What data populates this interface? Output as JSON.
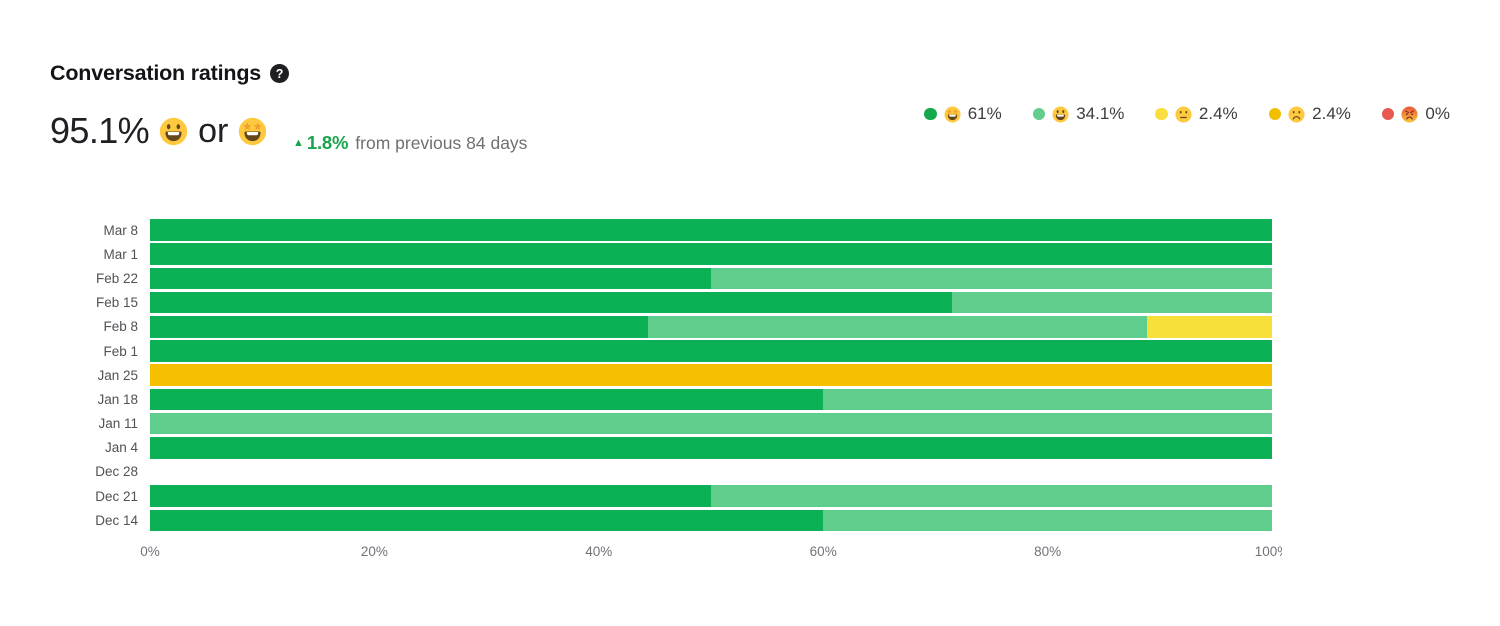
{
  "header": {
    "title": "Conversation ratings",
    "help_glyph": "?",
    "score": "95.1%",
    "score_emoji_1": "grinning",
    "score_conjunction": "or",
    "score_emoji_2": "star-struck",
    "delta_arrow": "▲",
    "delta": "1.8%",
    "delta_caption": "from previous 84 days",
    "delta_color": "#18a44c"
  },
  "legend": [
    {
      "emoji": "star-struck",
      "value": "61%",
      "dot_color": "#16a84c"
    },
    {
      "emoji": "grinning",
      "value": "34.1%",
      "dot_color": "#63cd8e"
    },
    {
      "emoji": "neutral",
      "value": "2.4%",
      "dot_color": "#fadd3f"
    },
    {
      "emoji": "slight-frown",
      "value": "2.4%",
      "dot_color": "#f2bf00"
    },
    {
      "emoji": "angry",
      "value": "0%",
      "dot_color": "#e85a50"
    }
  ],
  "chart_data": {
    "type": "bar",
    "orientation": "horizontal",
    "stacked": true,
    "unit": "%",
    "xlim": [
      0,
      100
    ],
    "grid": false,
    "x_ticks": [
      "0%",
      "20%",
      "40%",
      "60%",
      "80%",
      "100%"
    ],
    "categories": [
      "Mar 8",
      "Mar 1",
      "Feb 22",
      "Feb 15",
      "Feb 8",
      "Feb 1",
      "Jan 25",
      "Jan 18",
      "Jan 11",
      "Jan 4",
      "Dec 28",
      "Dec 21",
      "Dec 14"
    ],
    "series": [
      {
        "name": "rating-amazing",
        "emoji": "star-struck",
        "color": "#0cb155",
        "values": [
          100,
          100,
          50,
          71.5,
          44.4,
          100,
          0,
          60,
          0,
          100,
          0,
          50,
          60
        ]
      },
      {
        "name": "rating-great",
        "emoji": "grinning",
        "color": "#5fce8d",
        "values": [
          0,
          0,
          50,
          28.5,
          44.5,
          0,
          0,
          40,
          100,
          0,
          0,
          50,
          40
        ]
      },
      {
        "name": "rating-ok",
        "emoji": "neutral",
        "color": "#f8e03a",
        "values": [
          0,
          0,
          0,
          0,
          11.1,
          0,
          0,
          0,
          0,
          0,
          0,
          0,
          0
        ]
      },
      {
        "name": "rating-bad",
        "emoji": "slight-frown",
        "color": "#f5c000",
        "values": [
          0,
          0,
          0,
          0,
          0,
          0,
          100,
          0,
          0,
          0,
          0,
          0,
          0
        ]
      },
      {
        "name": "rating-terrible",
        "emoji": "angry",
        "color": "#e85b51",
        "values": [
          0,
          0,
          0,
          0,
          0,
          0,
          0,
          0,
          0,
          0,
          0,
          0,
          0
        ]
      }
    ]
  }
}
